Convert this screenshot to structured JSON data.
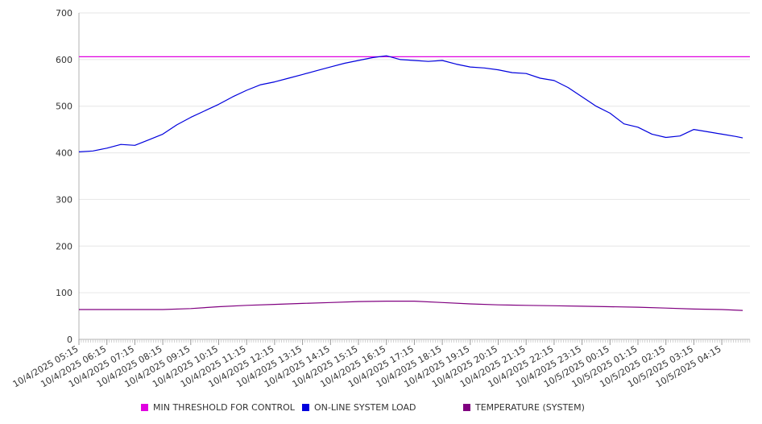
{
  "chart_data": {
    "type": "line",
    "title": "",
    "xlabel": "",
    "ylabel": "",
    "ylim": [
      0,
      700
    ],
    "yticks": [
      0,
      100,
      200,
      300,
      400,
      500,
      600,
      700
    ],
    "grid": "horizontal",
    "legend_position": "bottom",
    "x_tick_labels": [
      "10/4/2025 05:15",
      "10/4/2025 06:15",
      "10/4/2025 07:15",
      "10/4/2025 08:15",
      "10/4/2025 09:15",
      "10/4/2025 10:15",
      "10/4/2025 11:15",
      "10/4/2025 12:15",
      "10/4/2025 13:15",
      "10/4/2025 14:15",
      "10/4/2025 15:15",
      "10/4/2025 16:15",
      "10/4/2025 17:15",
      "10/4/2025 18:15",
      "10/4/2025 19:15",
      "10/4/2025 20:15",
      "10/4/2025 21:15",
      "10/4/2025 22:15",
      "10/4/2025 23:15",
      "10/5/2025 00:15",
      "10/5/2025 01:15",
      "10/5/2025 02:15",
      "10/5/2025 03:15",
      "10/5/2025 04:15"
    ],
    "series": [
      {
        "name": "MIN THRESHOLD FOR CONTROL",
        "color": "#e000e0",
        "x": [
          "10/4/2025 05:15",
          "10/5/2025 05:15"
        ],
        "values": [
          606,
          606
        ]
      },
      {
        "name": "ON-LINE SYSTEM LOAD",
        "color": "#0000dd",
        "x": [
          "10/4/2025 05:15",
          "10/4/2025 05:45",
          "10/4/2025 06:15",
          "10/4/2025 06:45",
          "10/4/2025 07:15",
          "10/4/2025 07:45",
          "10/4/2025 08:15",
          "10/4/2025 08:45",
          "10/4/2025 09:15",
          "10/4/2025 09:45",
          "10/4/2025 10:15",
          "10/4/2025 10:45",
          "10/4/2025 11:15",
          "10/4/2025 11:45",
          "10/4/2025 12:15",
          "10/4/2025 12:45",
          "10/4/2025 13:15",
          "10/4/2025 13:45",
          "10/4/2025 14:15",
          "10/4/2025 14:45",
          "10/4/2025 15:15",
          "10/4/2025 15:45",
          "10/4/2025 16:15",
          "10/4/2025 16:45",
          "10/4/2025 17:15",
          "10/4/2025 17:45",
          "10/4/2025 18:15",
          "10/4/2025 18:45",
          "10/4/2025 19:15",
          "10/4/2025 19:45",
          "10/4/2025 20:15",
          "10/4/2025 20:45",
          "10/4/2025 21:15",
          "10/4/2025 21:45",
          "10/4/2025 22:15",
          "10/4/2025 22:45",
          "10/4/2025 23:15",
          "10/4/2025 23:45",
          "10/5/2025 00:15",
          "10/5/2025 00:45",
          "10/5/2025 01:15",
          "10/5/2025 01:45",
          "10/5/2025 02:15",
          "10/5/2025 02:45",
          "10/5/2025 03:15",
          "10/5/2025 03:45",
          "10/5/2025 04:15",
          "10/5/2025 04:45",
          "10/5/2025 05:00"
        ],
        "values": [
          402,
          404,
          410,
          418,
          416,
          428,
          440,
          460,
          476,
          490,
          504,
          520,
          534,
          546,
          552,
          560,
          568,
          576,
          584,
          592,
          598,
          604,
          608,
          600,
          598,
          596,
          598,
          590,
          584,
          582,
          578,
          572,
          570,
          560,
          555,
          540,
          520,
          500,
          485,
          462,
          455,
          440,
          433,
          436,
          450,
          445,
          440,
          435,
          432
        ]
      },
      {
        "name": "TEMPERATURE (SYSTEM)",
        "color": "#800080",
        "x": [
          "10/4/2025 05:15",
          "10/4/2025 07:15",
          "10/4/2025 08:15",
          "10/4/2025 09:15",
          "10/4/2025 10:15",
          "10/4/2025 11:15",
          "10/4/2025 12:15",
          "10/4/2025 13:15",
          "10/4/2025 14:15",
          "10/4/2025 15:15",
          "10/4/2025 16:15",
          "10/4/2025 17:15",
          "10/4/2025 18:15",
          "10/4/2025 19:15",
          "10/4/2025 20:15",
          "10/4/2025 21:15",
          "10/4/2025 22:15",
          "10/4/2025 23:15",
          "10/5/2025 00:15",
          "10/5/2025 01:15",
          "10/5/2025 02:15",
          "10/5/2025 03:15",
          "10/5/2025 04:15",
          "10/5/2025 05:00"
        ],
        "values": [
          64,
          64,
          64,
          66,
          70,
          73,
          75,
          77,
          79,
          81,
          82,
          82,
          79,
          76,
          74,
          73,
          72,
          71,
          70,
          69,
          67,
          65,
          64,
          62
        ]
      }
    ]
  }
}
